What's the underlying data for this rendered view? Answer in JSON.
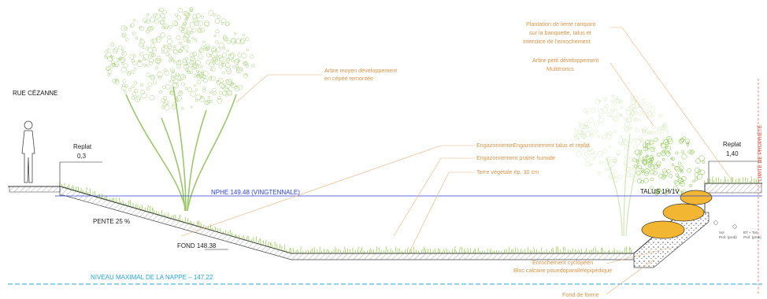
{
  "labels": {
    "street": "RUE CÉZANNE",
    "replat_left_title": "Replat",
    "replat_left_value": "0,3",
    "replat_right_title": "Replat",
    "replat_right_value": "1,40",
    "slope": "PENTE 25 %",
    "bottom": "FOND 148.38",
    "nphe": "NPHE 149.48 (VINGTENNALE)",
    "talus": "TALUS 1H/1V",
    "water_table": "NIVEAU MAXIMAL DE LA NAPPE – 147.22",
    "property_limit": "LIMITE DE PROPRIÉTÉ",
    "small_a": "Sol",
    "small_b": "Prof. (prob)",
    "small_c": "BT + Toit",
    "small_d": "Prof. (prob)"
  },
  "annotations": {
    "tree_medium_1": "Arbre moyen développement",
    "tree_medium_2": "en cépée remontée",
    "ground_cover_1": "Plantation de lierre rampant",
    "ground_cover_2": "sur la banquette, talus et",
    "ground_cover_3": "interstice de l'enrochement",
    "tree_small_1": "Arbre petit développement",
    "tree_small_2": "Multitroncs",
    "grass_1": "EngazonnemeEngazonnement talus et replat",
    "grass_2": "Engazonnement prairie humide",
    "soil": "Terre végétale ép. 30 cm",
    "riprap_1": "Enrochement cyclopéen",
    "riprap_2": "Bloc calcaire pouedoparallélépipédique",
    "foundation": "Fond de forme"
  },
  "colors": {
    "annotation": "#d9944a",
    "nphe_line": "#2b3fd0",
    "water_table": "#26a6d9",
    "vegetation": "#8cc63f",
    "boulder": "#f2b632",
    "property_limit": "#e0402a"
  }
}
